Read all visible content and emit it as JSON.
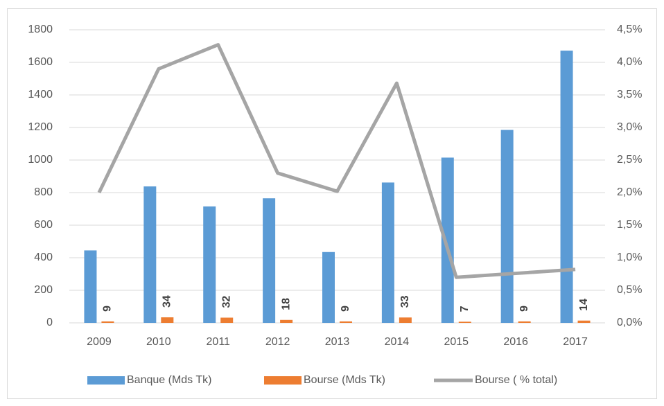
{
  "chart_data": {
    "type": "bar",
    "categories": [
      "2009",
      "2010",
      "2011",
      "2012",
      "2013",
      "2014",
      "2015",
      "2016",
      "2017"
    ],
    "series": [
      {
        "name": "Banque (Mds Tk)",
        "color": "#5b9bd5",
        "type": "bar",
        "values": [
          445,
          838,
          715,
          765,
          435,
          862,
          1015,
          1185,
          1672
        ]
      },
      {
        "name": "Bourse (Mds Tk)",
        "color": "#ed7d31",
        "type": "bar",
        "values": [
          9,
          34,
          32,
          18,
          9,
          33,
          7,
          9,
          14
        ],
        "show_values": true
      },
      {
        "name": "Bourse ( % total)",
        "color": "#a5a5a5",
        "type": "line",
        "axis": "y2",
        "values": [
          2.0,
          3.9,
          4.27,
          2.3,
          2.02,
          3.68,
          0.7,
          0.76,
          0.82
        ]
      }
    ],
    "ylim": [
      0,
      1800
    ],
    "yticks": [
      0,
      200,
      400,
      600,
      800,
      1000,
      1200,
      1400,
      1600,
      1800
    ],
    "y2lim": [
      0,
      4.5
    ],
    "y2ticks": [
      {
        "value": 0,
        "label": "0,0%"
      },
      {
        "value": 0.5,
        "label": "0,5%"
      },
      {
        "value": 1,
        "label": "1,0%"
      },
      {
        "value": 1.5,
        "label": "1,5%"
      },
      {
        "value": 2,
        "label": "2,0%"
      },
      {
        "value": 2.5,
        "label": "2,5%"
      },
      {
        "value": 3,
        "label": "3,0%"
      },
      {
        "value": 3.5,
        "label": "3,5%"
      },
      {
        "value": 4,
        "label": "4,0%"
      },
      {
        "value": 4.5,
        "label": "4,5%"
      }
    ],
    "grid": true,
    "legend": "bottom"
  }
}
